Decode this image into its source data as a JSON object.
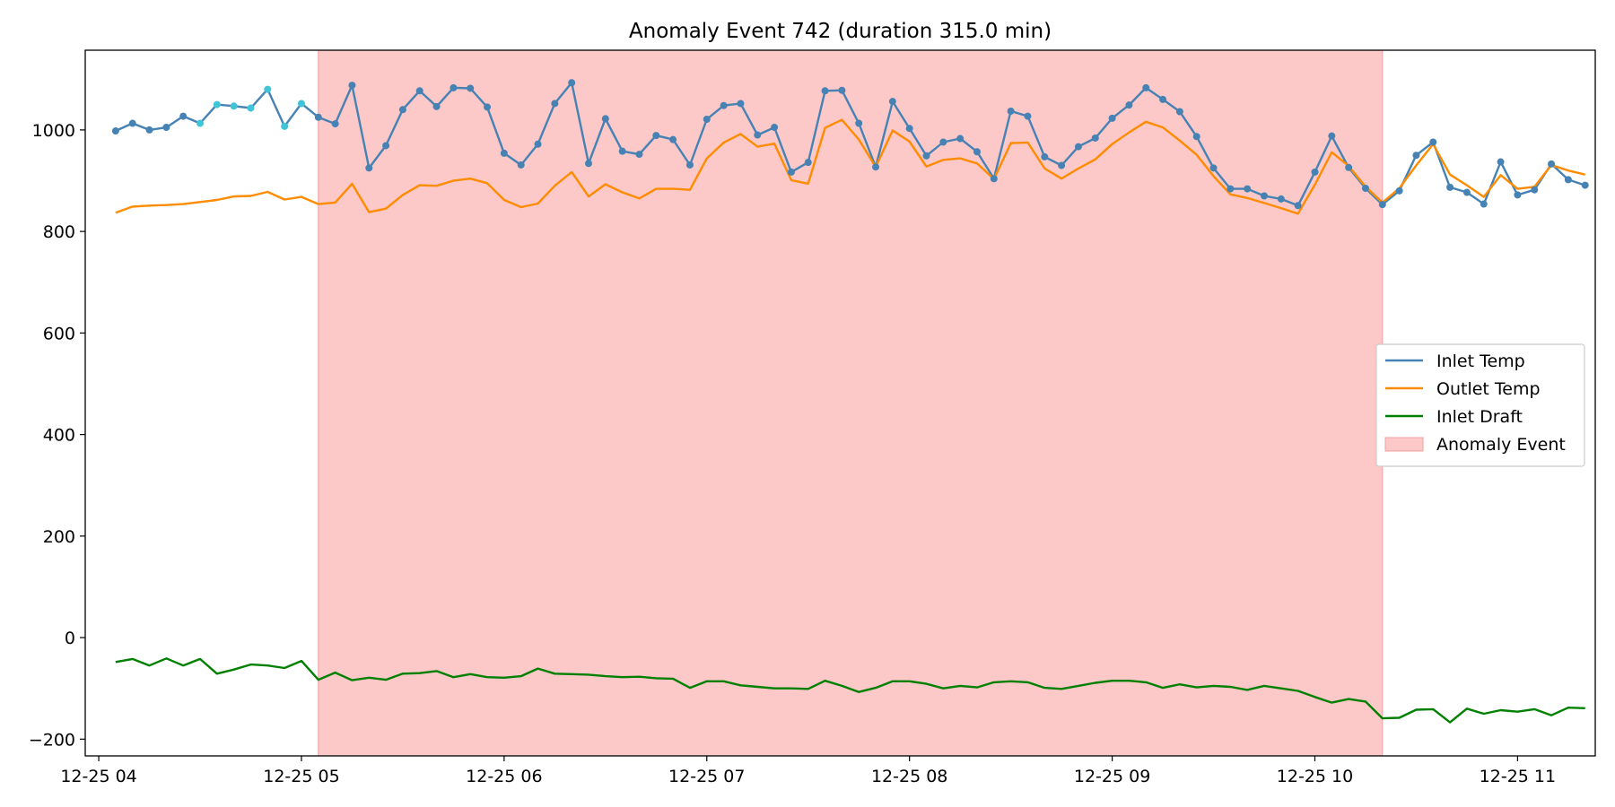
{
  "chart_data": {
    "type": "line",
    "title": "Anomaly Event 742 (duration 315.0 min)",
    "xlabel": "",
    "ylabel": "",
    "x_range": [
      "2023-12-25 03:56",
      "2023-12-25 11:23"
    ],
    "ylim": [
      -233,
      1157
    ],
    "yticks": [
      -200,
      0,
      200,
      400,
      600,
      800,
      1000
    ],
    "xticks": [
      {
        "t": "2023-12-25 04:00",
        "label": "12-25 04"
      },
      {
        "t": "2023-12-25 05:00",
        "label": "12-25 05"
      },
      {
        "t": "2023-12-25 06:00",
        "label": "12-25 06"
      },
      {
        "t": "2023-12-25 07:00",
        "label": "12-25 07"
      },
      {
        "t": "2023-12-25 08:00",
        "label": "12-25 08"
      },
      {
        "t": "2023-12-25 09:00",
        "label": "12-25 09"
      },
      {
        "t": "2023-12-25 10:00",
        "label": "12-25 10"
      },
      {
        "t": "2023-12-25 11:00",
        "label": "12-25 11"
      }
    ],
    "grid": false,
    "legend_position": "center-right",
    "x": [
      "2023-12-25 04:05",
      "2023-12-25 04:10",
      "2023-12-25 04:15",
      "2023-12-25 04:20",
      "2023-12-25 04:25",
      "2023-12-25 04:30",
      "2023-12-25 04:35",
      "2023-12-25 04:40",
      "2023-12-25 04:45",
      "2023-12-25 04:50",
      "2023-12-25 04:55",
      "2023-12-25 05:00",
      "2023-12-25 05:05",
      "2023-12-25 05:10",
      "2023-12-25 05:15",
      "2023-12-25 05:20",
      "2023-12-25 05:25",
      "2023-12-25 05:30",
      "2023-12-25 05:35",
      "2023-12-25 05:40",
      "2023-12-25 05:45",
      "2023-12-25 05:50",
      "2023-12-25 05:55",
      "2023-12-25 06:00",
      "2023-12-25 06:05",
      "2023-12-25 06:10",
      "2023-12-25 06:15",
      "2023-12-25 06:20",
      "2023-12-25 06:25",
      "2023-12-25 06:30",
      "2023-12-25 06:35",
      "2023-12-25 06:40",
      "2023-12-25 06:45",
      "2023-12-25 06:50",
      "2023-12-25 06:55",
      "2023-12-25 07:00",
      "2023-12-25 07:05",
      "2023-12-25 07:10",
      "2023-12-25 07:15",
      "2023-12-25 07:20",
      "2023-12-25 07:25",
      "2023-12-25 07:30",
      "2023-12-25 07:35",
      "2023-12-25 07:40",
      "2023-12-25 07:45",
      "2023-12-25 07:50",
      "2023-12-25 07:55",
      "2023-12-25 08:00",
      "2023-12-25 08:05",
      "2023-12-25 08:10",
      "2023-12-25 08:15",
      "2023-12-25 08:20",
      "2023-12-25 08:25",
      "2023-12-25 08:30",
      "2023-12-25 08:35",
      "2023-12-25 08:40",
      "2023-12-25 08:45",
      "2023-12-25 08:50",
      "2023-12-25 08:55",
      "2023-12-25 09:00",
      "2023-12-25 09:05",
      "2023-12-25 09:10",
      "2023-12-25 09:15",
      "2023-12-25 09:20",
      "2023-12-25 09:25",
      "2023-12-25 09:30",
      "2023-12-25 09:35",
      "2023-12-25 09:40",
      "2023-12-25 09:45",
      "2023-12-25 09:50",
      "2023-12-25 09:55",
      "2023-12-25 10:00",
      "2023-12-25 10:05",
      "2023-12-25 10:10",
      "2023-12-25 10:15",
      "2023-12-25 10:20",
      "2023-12-25 10:25",
      "2023-12-25 10:30",
      "2023-12-25 10:35",
      "2023-12-25 10:40",
      "2023-12-25 10:45",
      "2023-12-25 10:50",
      "2023-12-25 10:55",
      "2023-12-25 11:00",
      "2023-12-25 11:05",
      "2023-12-25 11:10",
      "2023-12-25 11:15",
      "2023-12-25 11:20"
    ],
    "series": [
      {
        "name": "Inlet Temp",
        "color": "#4682b4",
        "marker": true,
        "values": [
          998,
          1013,
          1000,
          1005,
          1027,
          1013,
          1050,
          1047,
          1043,
          1080,
          1007,
          1052,
          1025,
          1012,
          1088,
          925,
          969,
          1040,
          1077,
          1046,
          1083,
          1082,
          1045,
          954,
          931,
          972,
          1052,
          1093,
          934,
          1022,
          958,
          952,
          989,
          981,
          931,
          1021,
          1048,
          1052,
          990,
          1005,
          917,
          936,
          1077,
          1078,
          1013,
          927,
          1056,
          1003,
          949,
          976,
          983,
          957,
          904,
          1037,
          1027,
          947,
          930,
          967,
          984,
          1023,
          1049,
          1083,
          1060,
          1036,
          987,
          925,
          884,
          884,
          870,
          864,
          851,
          917,
          988,
          926,
          885,
          853,
          880,
          950,
          976,
          887,
          877,
          854,
          937,
          872,
          882,
          933,
          902,
          891
        ]
      },
      {
        "name": "Outlet Temp",
        "color": "#ff8c00",
        "marker": false,
        "values": [
          837,
          849,
          851,
          852,
          854,
          858,
          862,
          869,
          870,
          878,
          863,
          868,
          854,
          857,
          894,
          838,
          845,
          872,
          891,
          890,
          900,
          904,
          895,
          862,
          848,
          855,
          890,
          917,
          869,
          893,
          877,
          865,
          884,
          884,
          882,
          944,
          975,
          992,
          967,
          973,
          901,
          894,
          1004,
          1020,
          981,
          927,
          999,
          977,
          928,
          941,
          944,
          934,
          903,
          974,
          975,
          924,
          904,
          924,
          942,
          972,
          995,
          1016,
          1005,
          979,
          951,
          909,
          873,
          866,
          856,
          846,
          835,
          892,
          956,
          929,
          888,
          857,
          885,
          930,
          972,
          912,
          891,
          868,
          911,
          884,
          888,
          931,
          920,
          912
        ]
      },
      {
        "name": "Inlet Draft",
        "color": "#008000",
        "marker": false,
        "values": [
          -48,
          -42,
          -55,
          -41,
          -55,
          -42,
          -71,
          -63,
          -53,
          -55,
          -60,
          -46,
          -83,
          -69,
          -84,
          -79,
          -83,
          -71,
          -70,
          -66,
          -78,
          -72,
          -78,
          -79,
          -76,
          -61,
          -71,
          -72,
          -73,
          -76,
          -78,
          -77,
          -80,
          -81,
          -99,
          -86,
          -86,
          -94,
          -97,
          -100,
          -100,
          -101,
          -85,
          -95,
          -107,
          -99,
          -86,
          -86,
          -91,
          -100,
          -95,
          -98,
          -88,
          -86,
          -88,
          -99,
          -101,
          -95,
          -89,
          -85,
          -85,
          -88,
          -99,
          -92,
          -98,
          -95,
          -97,
          -103,
          -95,
          -100,
          -105,
          -117,
          -128,
          -121,
          -126,
          -159,
          -158,
          -142,
          -141,
          -167,
          -140,
          -150,
          -143,
          -146,
          -141,
          -153,
          -138,
          -139
        ]
      }
    ],
    "highlight_points": {
      "series": "Inlet Temp",
      "color": "#40c4d8",
      "indices": [
        5,
        6,
        7,
        8,
        9,
        10,
        11
      ]
    },
    "shaded_region": {
      "name": "Anomaly Event",
      "color": "#fcc8c8",
      "edge_color": "#f0a0a0",
      "start": "2023-12-25 05:05",
      "end": "2023-12-25 10:20"
    }
  }
}
